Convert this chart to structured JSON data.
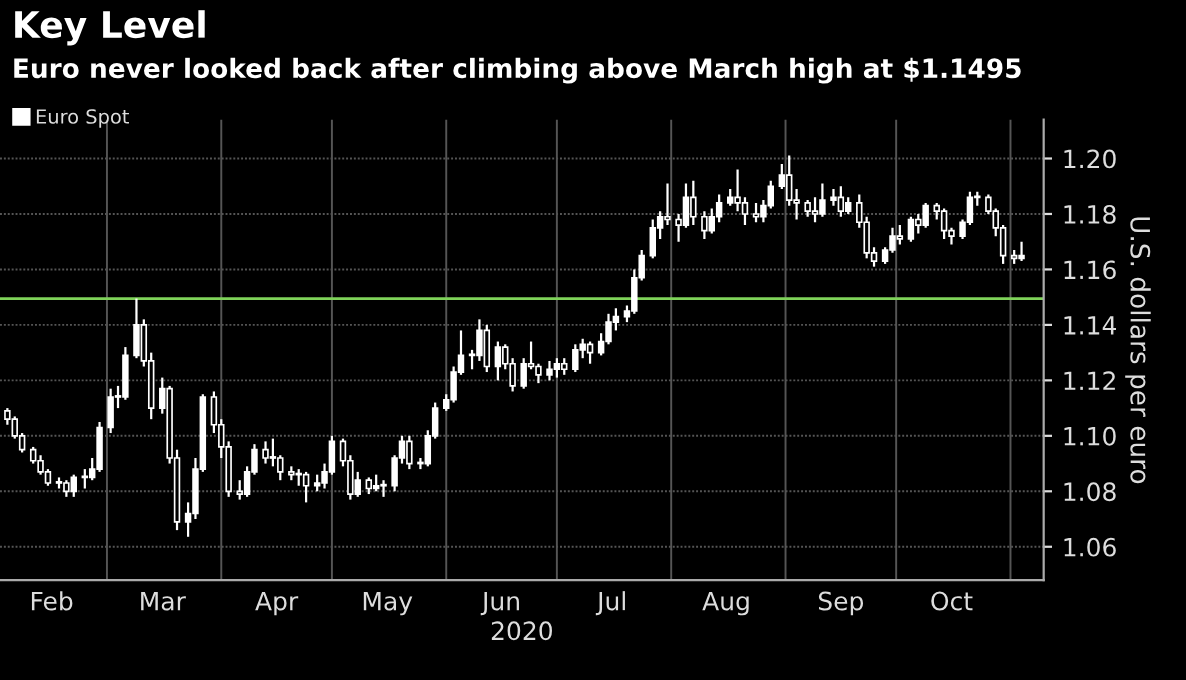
{
  "chart_data": {
    "type": "candlestick",
    "title": "Key Level",
    "subtitle": "Euro never looked back after climbing above March high at $1.1495",
    "ylabel": "U.S. dollars per euro",
    "xlabel": "2020",
    "legend": "top left",
    "grid": true,
    "series": [
      {
        "name": "Euro Spot",
        "color": "#ffffff",
        "x": [
          "2020-02-03",
          "2020-02-05",
          "2020-02-07",
          "2020-02-10",
          "2020-02-12",
          "2020-02-14",
          "2020-02-17",
          "2020-02-19",
          "2020-02-21",
          "2020-02-24",
          "2020-02-26",
          "2020-02-28",
          "2020-03-02",
          "2020-03-04",
          "2020-03-06",
          "2020-03-09",
          "2020-03-11",
          "2020-03-13",
          "2020-03-16",
          "2020-03-18",
          "2020-03-20",
          "2020-03-23",
          "2020-03-25",
          "2020-03-27",
          "2020-03-30",
          "2020-04-01",
          "2020-04-03",
          "2020-04-06",
          "2020-04-08",
          "2020-04-10",
          "2020-04-13",
          "2020-04-15",
          "2020-04-17",
          "2020-04-20",
          "2020-04-22",
          "2020-04-24",
          "2020-04-27",
          "2020-04-29",
          "2020-05-01",
          "2020-05-04",
          "2020-05-06",
          "2020-05-08",
          "2020-05-11",
          "2020-05-13",
          "2020-05-15",
          "2020-05-18",
          "2020-05-20",
          "2020-05-22",
          "2020-05-25",
          "2020-05-27",
          "2020-05-29",
          "2020-06-01",
          "2020-06-03",
          "2020-06-05",
          "2020-06-08",
          "2020-06-10",
          "2020-06-12",
          "2020-06-15",
          "2020-06-17",
          "2020-06-19",
          "2020-06-22",
          "2020-06-24",
          "2020-06-26",
          "2020-06-29",
          "2020-07-01",
          "2020-07-03",
          "2020-07-06",
          "2020-07-08",
          "2020-07-10",
          "2020-07-13",
          "2020-07-15",
          "2020-07-17",
          "2020-07-20",
          "2020-07-22",
          "2020-07-24",
          "2020-07-27",
          "2020-07-29",
          "2020-07-31",
          "2020-08-03",
          "2020-08-05",
          "2020-08-07",
          "2020-08-10",
          "2020-08-12",
          "2020-08-14",
          "2020-08-17",
          "2020-08-19",
          "2020-08-21",
          "2020-08-24",
          "2020-08-26",
          "2020-08-28",
          "2020-08-31",
          "2020-09-02",
          "2020-09-04",
          "2020-09-07",
          "2020-09-09",
          "2020-09-11",
          "2020-09-14",
          "2020-09-16",
          "2020-09-18",
          "2020-09-21",
          "2020-09-23",
          "2020-09-25",
          "2020-09-28",
          "2020-09-30",
          "2020-10-02",
          "2020-10-05",
          "2020-10-07",
          "2020-10-09",
          "2020-10-12",
          "2020-10-14",
          "2020-10-16",
          "2020-10-19",
          "2020-10-21",
          "2020-10-23",
          "2020-10-26",
          "2020-10-28",
          "2020-10-30",
          "2020-11-02",
          "2020-11-04"
        ],
        "ohlc": [
          [
            1.109,
            1.11,
            1.104,
            1.106
          ],
          [
            1.106,
            1.107,
            1.099,
            1.1
          ],
          [
            1.1,
            1.101,
            1.094,
            1.095
          ],
          [
            1.095,
            1.096,
            1.09,
            1.091
          ],
          [
            1.091,
            1.093,
            1.086,
            1.087
          ],
          [
            1.087,
            1.088,
            1.082,
            1.083
          ],
          [
            1.083,
            1.085,
            1.081,
            1.083
          ],
          [
            1.083,
            1.084,
            1.078,
            1.08
          ],
          [
            1.08,
            1.086,
            1.078,
            1.085
          ],
          [
            1.085,
            1.088,
            1.081,
            1.085
          ],
          [
            1.085,
            1.092,
            1.084,
            1.088
          ],
          [
            1.088,
            1.105,
            1.087,
            1.103
          ],
          [
            1.103,
            1.117,
            1.101,
            1.114
          ],
          [
            1.114,
            1.118,
            1.11,
            1.114
          ],
          [
            1.114,
            1.132,
            1.113,
            1.129
          ],
          [
            1.129,
            1.1495,
            1.128,
            1.14
          ],
          [
            1.14,
            1.142,
            1.125,
            1.127
          ],
          [
            1.127,
            1.13,
            1.106,
            1.11
          ],
          [
            1.11,
            1.121,
            1.108,
            1.117
          ],
          [
            1.117,
            1.118,
            1.09,
            1.092
          ],
          [
            1.092,
            1.095,
            1.066,
            1.069
          ],
          [
            1.069,
            1.076,
            1.0636,
            1.072
          ],
          [
            1.072,
            1.092,
            1.07,
            1.088
          ],
          [
            1.088,
            1.115,
            1.087,
            1.114
          ],
          [
            1.114,
            1.116,
            1.101,
            1.104
          ],
          [
            1.104,
            1.106,
            1.092,
            1.096
          ],
          [
            1.096,
            1.098,
            1.078,
            1.08
          ],
          [
            1.08,
            1.084,
            1.077,
            1.079
          ],
          [
            1.079,
            1.089,
            1.078,
            1.087
          ],
          [
            1.087,
            1.097,
            1.086,
            1.095
          ],
          [
            1.095,
            1.098,
            1.09,
            1.092
          ],
          [
            1.092,
            1.099,
            1.089,
            1.092
          ],
          [
            1.092,
            1.093,
            1.084,
            1.087
          ],
          [
            1.087,
            1.089,
            1.084,
            1.086
          ],
          [
            1.086,
            1.088,
            1.082,
            1.086
          ],
          [
            1.086,
            1.087,
            1.076,
            1.082
          ],
          [
            1.082,
            1.086,
            1.08,
            1.083
          ],
          [
            1.083,
            1.09,
            1.081,
            1.087
          ],
          [
            1.087,
            1.1,
            1.086,
            1.098
          ],
          [
            1.098,
            1.099,
            1.089,
            1.091
          ],
          [
            1.091,
            1.093,
            1.077,
            1.079
          ],
          [
            1.079,
            1.087,
            1.078,
            1.084
          ],
          [
            1.084,
            1.085,
            1.079,
            1.081
          ],
          [
            1.081,
            1.086,
            1.08,
            1.082
          ],
          [
            1.082,
            1.084,
            1.078,
            1.082
          ],
          [
            1.082,
            1.093,
            1.08,
            1.092
          ],
          [
            1.092,
            1.1,
            1.09,
            1.098
          ],
          [
            1.098,
            1.1,
            1.088,
            1.09
          ],
          [
            1.09,
            1.092,
            1.088,
            1.09
          ],
          [
            1.09,
            1.102,
            1.089,
            1.1
          ],
          [
            1.1,
            1.112,
            1.099,
            1.11
          ],
          [
            1.11,
            1.115,
            1.109,
            1.113
          ],
          [
            1.113,
            1.125,
            1.112,
            1.123
          ],
          [
            1.123,
            1.138,
            1.122,
            1.129
          ],
          [
            1.129,
            1.131,
            1.124,
            1.129
          ],
          [
            1.129,
            1.142,
            1.127,
            1.138
          ],
          [
            1.138,
            1.14,
            1.123,
            1.125
          ],
          [
            1.125,
            1.134,
            1.12,
            1.132
          ],
          [
            1.132,
            1.133,
            1.124,
            1.126
          ],
          [
            1.126,
            1.128,
            1.116,
            1.118
          ],
          [
            1.118,
            1.128,
            1.117,
            1.126
          ],
          [
            1.126,
            1.134,
            1.124,
            1.125
          ],
          [
            1.125,
            1.126,
            1.119,
            1.122
          ],
          [
            1.122,
            1.127,
            1.12,
            1.124
          ],
          [
            1.124,
            1.128,
            1.121,
            1.126
          ],
          [
            1.126,
            1.128,
            1.122,
            1.124
          ],
          [
            1.124,
            1.133,
            1.123,
            1.131
          ],
          [
            1.131,
            1.135,
            1.128,
            1.133
          ],
          [
            1.133,
            1.134,
            1.126,
            1.13
          ],
          [
            1.13,
            1.137,
            1.129,
            1.134
          ],
          [
            1.134,
            1.144,
            1.133,
            1.141
          ],
          [
            1.141,
            1.146,
            1.138,
            1.143
          ],
          [
            1.143,
            1.147,
            1.141,
            1.145
          ],
          [
            1.145,
            1.16,
            1.144,
            1.157
          ],
          [
            1.157,
            1.167,
            1.156,
            1.165
          ],
          [
            1.165,
            1.178,
            1.164,
            1.175
          ],
          [
            1.175,
            1.181,
            1.171,
            1.179
          ],
          [
            1.179,
            1.191,
            1.176,
            1.178
          ],
          [
            1.178,
            1.18,
            1.17,
            1.176
          ],
          [
            1.176,
            1.191,
            1.175,
            1.186
          ],
          [
            1.186,
            1.192,
            1.176,
            1.179
          ],
          [
            1.179,
            1.181,
            1.171,
            1.174
          ],
          [
            1.174,
            1.182,
            1.173,
            1.179
          ],
          [
            1.179,
            1.187,
            1.177,
            1.184
          ],
          [
            1.184,
            1.189,
            1.183,
            1.186
          ],
          [
            1.186,
            1.196,
            1.181,
            1.184
          ],
          [
            1.184,
            1.186,
            1.176,
            1.18
          ],
          [
            1.18,
            1.184,
            1.177,
            1.179
          ],
          [
            1.179,
            1.185,
            1.177,
            1.183
          ],
          [
            1.183,
            1.192,
            1.182,
            1.19
          ],
          [
            1.19,
            1.198,
            1.189,
            1.194
          ],
          [
            1.194,
            1.2011,
            1.183,
            1.185
          ],
          [
            1.185,
            1.189,
            1.178,
            1.184
          ],
          [
            1.184,
            1.185,
            1.179,
            1.181
          ],
          [
            1.181,
            1.186,
            1.177,
            1.18
          ],
          [
            1.18,
            1.191,
            1.179,
            1.185
          ],
          [
            1.185,
            1.189,
            1.183,
            1.186
          ],
          [
            1.186,
            1.19,
            1.179,
            1.181
          ],
          [
            1.181,
            1.186,
            1.18,
            1.184
          ],
          [
            1.184,
            1.187,
            1.175,
            1.177
          ],
          [
            1.177,
            1.179,
            1.164,
            1.166
          ],
          [
            1.166,
            1.168,
            1.161,
            1.163
          ],
          [
            1.163,
            1.168,
            1.162,
            1.167
          ],
          [
            1.167,
            1.175,
            1.166,
            1.172
          ],
          [
            1.172,
            1.176,
            1.169,
            1.171
          ],
          [
            1.171,
            1.179,
            1.17,
            1.178
          ],
          [
            1.178,
            1.18,
            1.173,
            1.176
          ],
          [
            1.176,
            1.184,
            1.175,
            1.183
          ],
          [
            1.183,
            1.184,
            1.178,
            1.181
          ],
          [
            1.181,
            1.182,
            1.171,
            1.174
          ],
          [
            1.174,
            1.175,
            1.169,
            1.172
          ],
          [
            1.172,
            1.178,
            1.171,
            1.177
          ],
          [
            1.177,
            1.188,
            1.176,
            1.186
          ],
          [
            1.186,
            1.188,
            1.183,
            1.186
          ],
          [
            1.186,
            1.187,
            1.18,
            1.181
          ],
          [
            1.181,
            1.182,
            1.172,
            1.175
          ],
          [
            1.175,
            1.176,
            1.162,
            1.165
          ],
          [
            1.165,
            1.167,
            1.162,
            1.164
          ],
          [
            1.164,
            1.17,
            1.163,
            1.165
          ]
        ]
      }
    ],
    "ref_lines": [
      {
        "axis": "y",
        "value": 1.1495,
        "color": "#7fd35a"
      }
    ],
    "xlim": [
      "2020-02-01",
      "2020-11-10"
    ],
    "xticks": [
      {
        "value": "2020-02-15",
        "label": "Feb"
      },
      {
        "value": "2020-03-01",
        "label": null
      },
      {
        "value": "2020-03-16",
        "label": "Mar"
      },
      {
        "value": "2020-04-01",
        "label": null
      },
      {
        "value": "2020-04-16",
        "label": "Apr"
      },
      {
        "value": "2020-05-01",
        "label": null
      },
      {
        "value": "2020-05-16",
        "label": "May"
      },
      {
        "value": "2020-06-01",
        "label": null
      },
      {
        "value": "2020-06-16",
        "label": "Jun"
      },
      {
        "value": "2020-07-01",
        "label": null
      },
      {
        "value": "2020-07-16",
        "label": "Jul"
      },
      {
        "value": "2020-08-01",
        "label": null
      },
      {
        "value": "2020-08-16",
        "label": "Aug"
      },
      {
        "value": "2020-09-01",
        "label": null
      },
      {
        "value": "2020-09-16",
        "label": "Sep"
      },
      {
        "value": "2020-10-01",
        "label": null
      },
      {
        "value": "2020-10-16",
        "label": "Oct"
      },
      {
        "value": "2020-11-01",
        "label": null
      }
    ],
    "ylim": [
      1.048,
      1.214
    ],
    "yticks": [
      {
        "value": 1.06,
        "label": "1.06"
      },
      {
        "value": 1.08,
        "label": "1.08"
      },
      {
        "value": 1.1,
        "label": "1.10"
      },
      {
        "value": 1.12,
        "label": "1.12"
      },
      {
        "value": 1.14,
        "label": "1.14"
      },
      {
        "value": 1.16,
        "label": "1.16"
      },
      {
        "value": 1.18,
        "label": "1.18"
      },
      {
        "value": 1.2,
        "label": "1.20"
      }
    ]
  }
}
